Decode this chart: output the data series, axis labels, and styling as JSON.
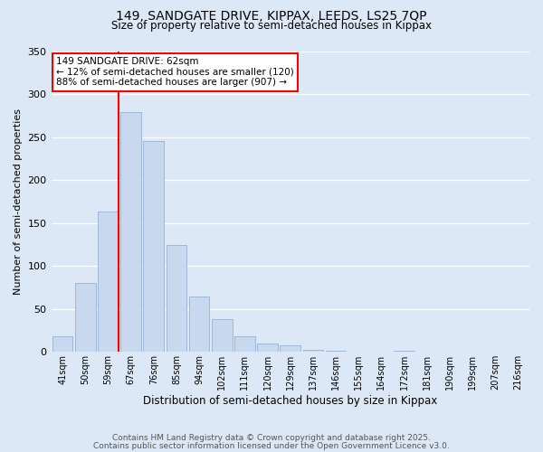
{
  "title_line1": "149, SANDGATE DRIVE, KIPPAX, LEEDS, LS25 7QP",
  "title_line2": "Size of property relative to semi-detached houses in Kippax",
  "xlabel": "Distribution of semi-detached houses by size in Kippax",
  "ylabel": "Number of semi-detached properties",
  "bin_labels": [
    "41sqm",
    "50sqm",
    "59sqm",
    "67sqm",
    "76sqm",
    "85sqm",
    "94sqm",
    "102sqm",
    "111sqm",
    "120sqm",
    "129sqm",
    "137sqm",
    "146sqm",
    "155sqm",
    "164sqm",
    "172sqm",
    "181sqm",
    "190sqm",
    "199sqm",
    "207sqm",
    "216sqm"
  ],
  "bar_values": [
    18,
    80,
    163,
    279,
    245,
    124,
    64,
    38,
    18,
    10,
    8,
    2,
    1,
    0,
    0,
    1,
    0,
    0,
    0,
    0,
    0
  ],
  "bar_color": "#c8d8ee",
  "bar_edge_color": "#a0b8d8",
  "background_color": "#dce8f5",
  "grid_color": "#ffffff",
  "vline_x_index": 2,
  "vline_color": "red",
  "annotation_title": "149 SANDGATE DRIVE: 62sqm",
  "annotation_line1": "← 12% of semi-detached houses are smaller (120)",
  "annotation_line2": "88% of semi-detached houses are larger (907) →",
  "annotation_box_color": "#ffffff",
  "annotation_box_edge": "red",
  "ylim": [
    0,
    350
  ],
  "yticks": [
    0,
    50,
    100,
    150,
    200,
    250,
    300,
    350
  ],
  "footer_line1": "Contains HM Land Registry data © Crown copyright and database right 2025.",
  "footer_line2": "Contains public sector information licensed under the Open Government Licence v3.0."
}
